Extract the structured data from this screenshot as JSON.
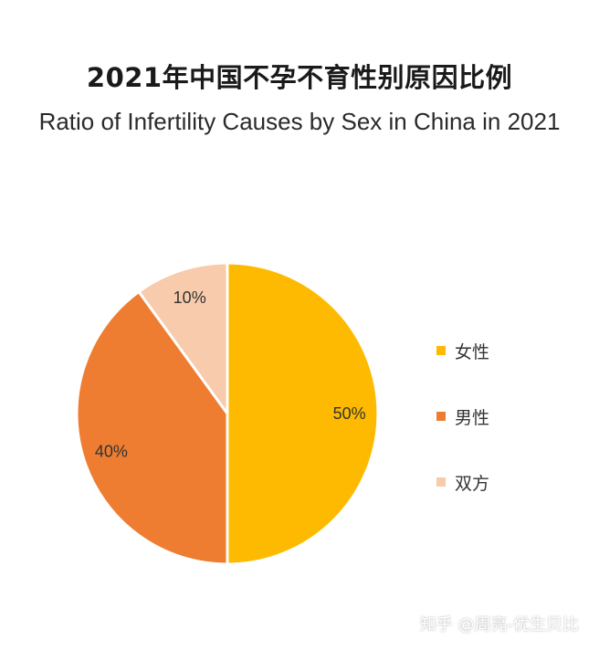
{
  "chart_data": {
    "type": "pie",
    "title": "2021年中国不孕不育性别原因比例",
    "subtitle": "Ratio of Infertility Causes by Sex in China in 2021",
    "slices": [
      {
        "label": "女性",
        "value": 50,
        "display": "50%",
        "color": "#FDBA00"
      },
      {
        "label": "男性",
        "value": 40,
        "display": "40%",
        "color": "#EE7D31"
      },
      {
        "label": "双方",
        "value": 10,
        "display": "10%",
        "color": "#F7CBAB"
      }
    ],
    "legend_position": "right",
    "start_angle": "12 o'clock",
    "direction": "clockwise"
  },
  "watermark": "知乎 @周亮-优生贝比"
}
